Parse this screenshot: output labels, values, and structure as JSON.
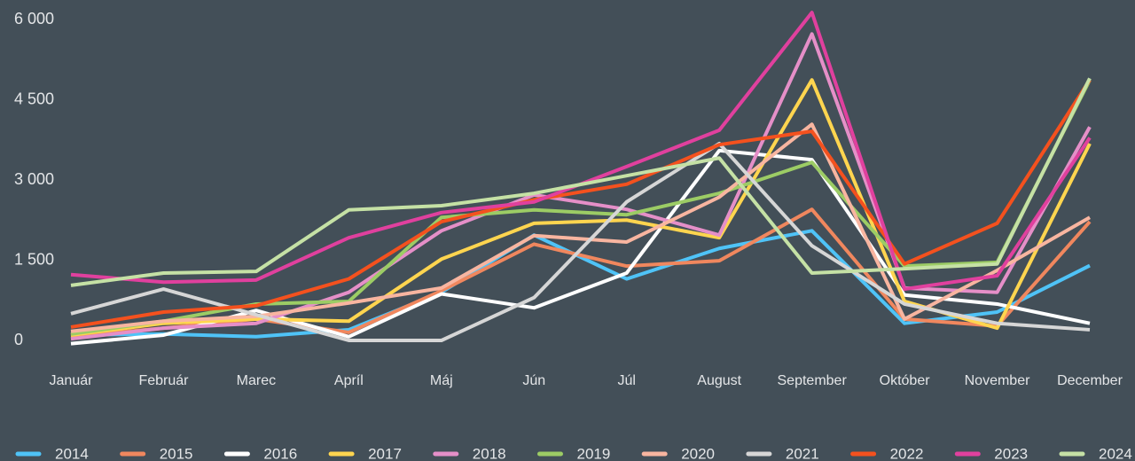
{
  "chart_data": {
    "type": "line",
    "categories": [
      "Január",
      "Február",
      "Marec",
      "Apríl",
      "Máj",
      "Jún",
      "Júl",
      "August",
      "September",
      "Október",
      "November",
      "December"
    ],
    "series": [
      {
        "name": "2014",
        "color": "#4fc3f7",
        "values": [
          100,
          120,
          70,
          200,
          900,
          1970,
          1150,
          1720,
          2050,
          320,
          530,
          1400
        ]
      },
      {
        "name": "2015",
        "color": "#f0875e",
        "values": [
          70,
          230,
          400,
          150,
          930,
          1800,
          1390,
          1490,
          2450,
          400,
          270,
          2220
        ]
      },
      {
        "name": "2016",
        "color": "#ffffff",
        "values": [
          -60,
          100,
          560,
          70,
          870,
          610,
          1260,
          3550,
          3380,
          850,
          680,
          320
        ]
      },
      {
        "name": "2017",
        "color": "#ffd54f",
        "values": [
          100,
          320,
          400,
          360,
          1520,
          2190,
          2250,
          1920,
          4870,
          730,
          230,
          3680
        ]
      },
      {
        "name": "2018",
        "color": "#e58fc8",
        "values": [
          30,
          230,
          320,
          900,
          2050,
          2720,
          2450,
          1970,
          5730,
          980,
          900,
          3990
        ]
      },
      {
        "name": "2019",
        "color": "#9ccc65",
        "values": [
          120,
          360,
          680,
          730,
          2300,
          2440,
          2350,
          2750,
          3330,
          1390,
          1460,
          4870
        ]
      },
      {
        "name": "2020",
        "color": "#f8b5a0",
        "values": [
          170,
          360,
          450,
          700,
          980,
          1960,
          1840,
          2680,
          4040,
          400,
          1310,
          2300
        ]
      },
      {
        "name": "2021",
        "color": "#d6d6d6",
        "values": [
          500,
          960,
          480,
          0,
          0,
          800,
          2590,
          3680,
          1770,
          680,
          320,
          200
        ]
      },
      {
        "name": "2022",
        "color": "#f4511e",
        "values": [
          250,
          530,
          650,
          1150,
          2220,
          2630,
          2920,
          3660,
          3910,
          1430,
          2190,
          4870
        ]
      },
      {
        "name": "2023",
        "color": "#e0409e",
        "values": [
          1230,
          1090,
          1130,
          1920,
          2390,
          2590,
          3250,
          3930,
          6130,
          960,
          1210,
          3790
        ]
      },
      {
        "name": "2024",
        "color": "#c5e1a5",
        "values": [
          1030,
          1260,
          1290,
          2440,
          2520,
          2750,
          3080,
          3410,
          1260,
          1340,
          1430,
          4900
        ]
      }
    ],
    "ylim": [
      0,
      6000
    ],
    "yticks": [
      0,
      {
        "value": 1500,
        "label": "1 500"
      },
      {
        "value": 3000,
        "label": "3 000"
      },
      {
        "value": 4500,
        "label": "4 500"
      },
      {
        "value": 6000,
        "label": "6 000"
      }
    ],
    "legend": "bottom"
  }
}
